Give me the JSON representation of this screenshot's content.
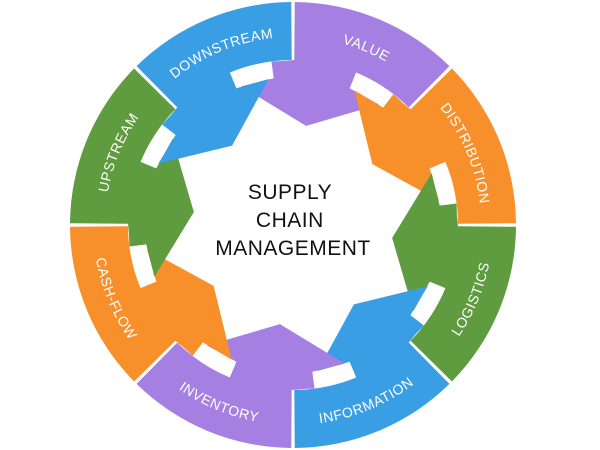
{
  "center": {
    "lines": [
      "SUPPLY",
      "CHAIN",
      "MANAGEMENT"
    ]
  },
  "segments": [
    {
      "label": "VALUE",
      "color": "#a57fe1"
    },
    {
      "label": "DISTRIBUTION",
      "color": "#f7902a"
    },
    {
      "label": "LOGISTICS",
      "color": "#5e9c3f"
    },
    {
      "label": "INFORMATION",
      "color": "#3a9ee4"
    },
    {
      "label": "INVENTORY",
      "color": "#a57fe1"
    },
    {
      "label": "CASH-FLOW",
      "color": "#f7902a"
    },
    {
      "label": "UPSTREAM",
      "color": "#5e9c3f"
    },
    {
      "label": "DOWNSTREAM",
      "color": "#3a9ee4"
    }
  ]
}
